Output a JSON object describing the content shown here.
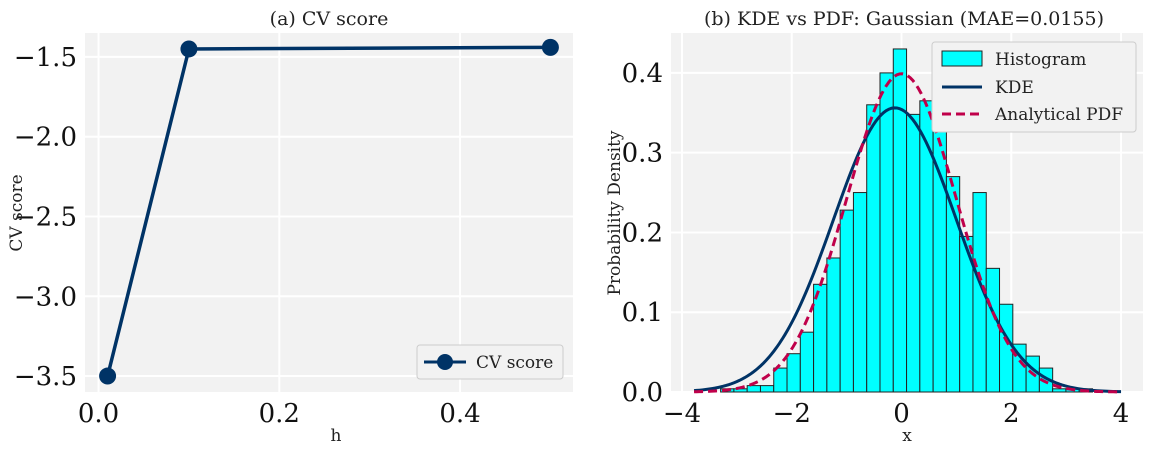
{
  "chart_data": [
    {
      "type": "line",
      "title": "(a) CV score",
      "xlabel": "h",
      "ylabel": "CV score",
      "xlim": [
        -0.015,
        0.525
      ],
      "ylim": [
        -3.6,
        -1.35
      ],
      "xticks": [
        0.0,
        0.2,
        0.4
      ],
      "xtick_labels": [
        "0.0",
        "0.2",
        "0.4"
      ],
      "yticks": [
        -3.5,
        -3.0,
        -2.5,
        -2.0,
        -1.5
      ],
      "ytick_labels": [
        "−3.5",
        "−3.0",
        "−2.5",
        "−2.0",
        "−1.5"
      ],
      "grid": true,
      "legend_position": "lower-right",
      "series": [
        {
          "name": "CV score",
          "color": "#003366",
          "marker": "circle",
          "x": [
            0.01,
            0.1,
            0.5
          ],
          "y": [
            -3.5,
            -1.45,
            -1.44
          ]
        }
      ]
    },
    {
      "type": "bar",
      "title": "(b) KDE vs PDF: Gaussian (MAE=0.0155)",
      "xlabel": "x",
      "ylabel": "Probability Density",
      "xlim": [
        -4.2,
        4.4
      ],
      "ylim": [
        0.0,
        0.45
      ],
      "xticks": [
        -4,
        -2,
        0,
        2,
        4
      ],
      "xtick_labels": [
        "−4",
        "−2",
        "0",
        "2",
        "4"
      ],
      "yticks": [
        0.0,
        0.1,
        0.2,
        0.3,
        0.4
      ],
      "ytick_labels": [
        "0.0",
        "0.1",
        "0.2",
        "0.3",
        "0.4"
      ],
      "grid": true,
      "legend_position": "upper-right",
      "histogram": {
        "name": "Histogram",
        "color": "#00ffff",
        "edge_color": "#222222",
        "bin_width": 0.242,
        "bin_left": [
          -3.78,
          -3.538,
          -3.296,
          -3.054,
          -2.812,
          -2.57,
          -2.328,
          -2.086,
          -1.844,
          -1.602,
          -1.36,
          -1.118,
          -0.876,
          -0.634,
          -0.392,
          -0.15,
          0.092,
          0.334,
          0.576,
          0.818,
          1.06,
          1.302,
          1.544,
          1.786,
          2.028,
          2.27,
          2.512,
          2.754,
          2.996,
          3.238
        ],
        "values": [
          0.0,
          0.0,
          0.004,
          0.004,
          0.008,
          0.008,
          0.03,
          0.048,
          0.075,
          0.135,
          0.168,
          0.228,
          0.25,
          0.36,
          0.4,
          0.43,
          0.348,
          0.365,
          0.34,
          0.27,
          0.195,
          0.25,
          0.155,
          0.11,
          0.06,
          0.045,
          0.03,
          0.004,
          0.004,
          0.004
        ]
      },
      "series": [
        {
          "name": "KDE",
          "color": "#003366",
          "style": "solid",
          "mean": -0.12,
          "std": 1.12,
          "x_range": [
            -3.78,
            4.0
          ]
        },
        {
          "name": "Analytical PDF",
          "color": "#c0004a",
          "style": "dashed",
          "mean": 0.0,
          "std": 1.0,
          "x_range": [
            -3.78,
            4.0
          ]
        }
      ]
    }
  ]
}
